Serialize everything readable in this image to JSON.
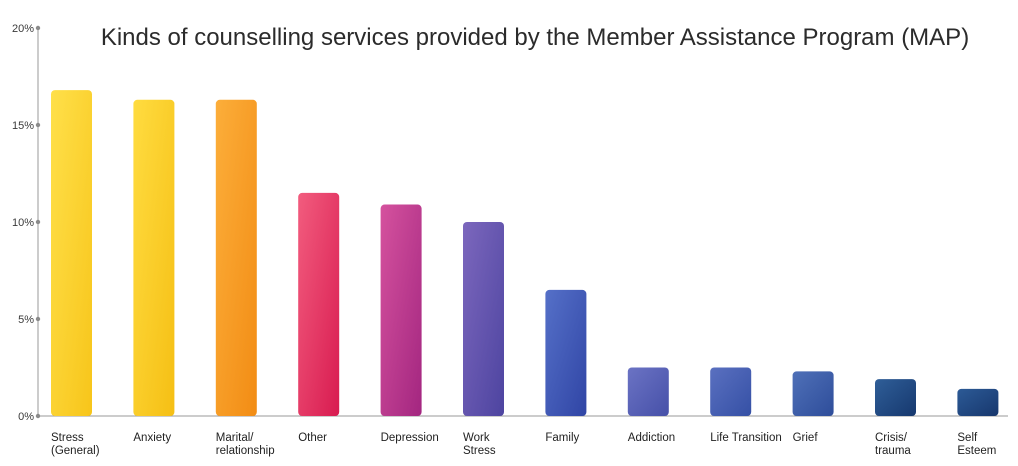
{
  "chart_data": {
    "type": "bar",
    "title": "Kinds of counselling services provided by the Member Assistance Program (MAP)",
    "xlabel": "",
    "ylabel": "",
    "ylim": [
      0,
      20
    ],
    "yticks": [
      "0%",
      "5%",
      "10%",
      "15%",
      "20%"
    ],
    "ytick_values": [
      0,
      5,
      10,
      15,
      20
    ],
    "grid": false,
    "categories": [
      [
        "Stress",
        "(General)"
      ],
      [
        "Anxiety"
      ],
      [
        "Marital/",
        "relationship"
      ],
      [
        "Other"
      ],
      [
        "Depression"
      ],
      [
        "Work",
        "Stress"
      ],
      [
        "Family"
      ],
      [
        "Addiction"
      ],
      [
        "Life Transition"
      ],
      [
        "Grief"
      ],
      [
        "Crisis/",
        "trauma"
      ],
      [
        "Self",
        "Esteem"
      ]
    ],
    "values": [
      16.8,
      16.3,
      16.3,
      11.5,
      10.9,
      10.0,
      6.5,
      2.5,
      2.5,
      2.3,
      1.9,
      1.4
    ],
    "colors": [
      [
        "#ffe04a",
        "#f7c51a"
      ],
      [
        "#ffdc40",
        "#f5bf14"
      ],
      [
        "#fcae3a",
        "#f28c14"
      ],
      [
        "#f25c7e",
        "#d81b50"
      ],
      [
        "#d5529e",
        "#a32680"
      ],
      [
        "#7c67bd",
        "#4d44a0"
      ],
      [
        "#5570c8",
        "#3045a5"
      ],
      [
        "#6b73c4",
        "#4650a8"
      ],
      [
        "#5a70c0",
        "#3550a5"
      ],
      [
        "#4f70b8",
        "#2e4d9a"
      ],
      [
        "#2f5e98",
        "#16386e"
      ],
      [
        "#2c5a96",
        "#17376d"
      ]
    ]
  }
}
